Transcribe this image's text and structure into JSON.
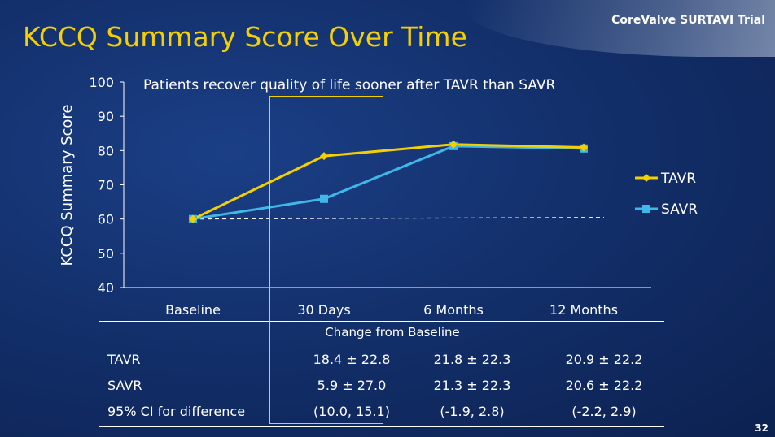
{
  "slide": {
    "title": "KCCQ Summary Score Over Time",
    "brand": "CoreValve SURTAVI Trial",
    "page_number": "32",
    "subtitle": "Patients recover quality of life sooner after TAVR than SAVR"
  },
  "chart_data": {
    "type": "line",
    "title": "Patients recover quality of life sooner after TAVR than SAVR",
    "xlabel": "",
    "ylabel": "KCCQ Summary Score",
    "categories": [
      "Baseline",
      "30 Days",
      "6 Months",
      "12 Months"
    ],
    "ylim": [
      40,
      100
    ],
    "yticks": [
      40,
      50,
      60,
      70,
      80,
      90,
      100
    ],
    "grid": false,
    "legend_position": "right",
    "baseline_reference": 60,
    "series": [
      {
        "name": "TAVR",
        "values": [
          60,
          78.4,
          81.8,
          80.9
        ],
        "color": "#f5d000",
        "marker": "diamond"
      },
      {
        "name": "SAVR",
        "values": [
          60,
          65.9,
          81.3,
          80.6
        ],
        "color": "#3fb7e8",
        "marker": "square"
      }
    ]
  },
  "table": {
    "caption": "Change  from Baseline",
    "rows": [
      {
        "label": "TAVR",
        "values": [
          "18.4 ± 22.8",
          "21.8 ± 22.3",
          "20.9 ± 22.2"
        ]
      },
      {
        "label": "SAVR",
        "values": [
          "5.9 ± 27.0",
          "21.3 ± 22.3",
          "20.6 ± 22.2"
        ]
      },
      {
        "label": "95% CI for difference",
        "values": [
          "(10.0, 15.1)",
          "(-1.9, 2.8)",
          "(-2.2, 2.9)"
        ]
      }
    ]
  }
}
